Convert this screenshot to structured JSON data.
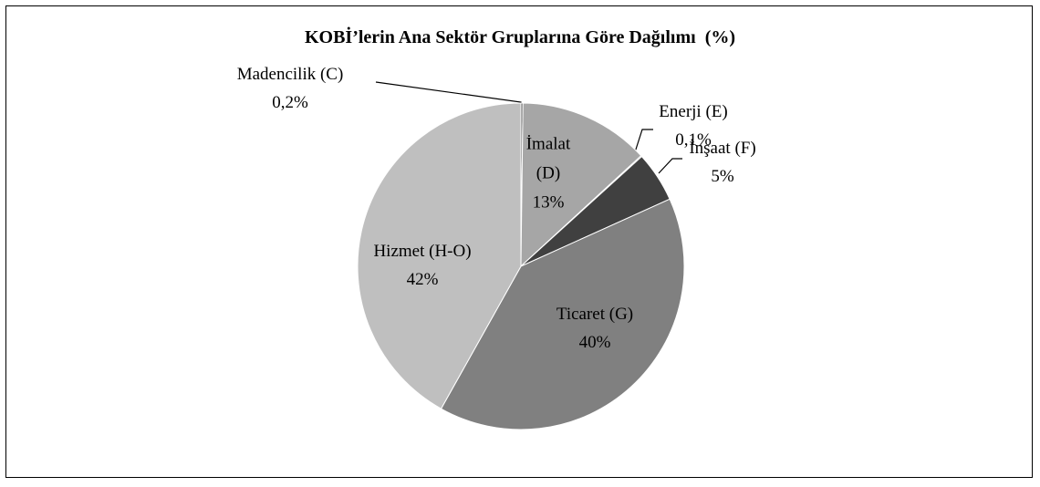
{
  "chart_data": {
    "type": "pie",
    "title": "KOBİ’lerin Ana Sektör Gruplarına Göre Dağılımı  (%)",
    "categories": [
      "Madencilik (C)",
      "İmalat (D)",
      "Enerji (E)",
      "İnşaat (F)",
      "Ticaret (G)",
      "Hizmet (H-O)"
    ],
    "values": [
      0.2,
      13,
      0.1,
      5,
      40,
      42
    ],
    "value_labels": [
      "0,2%",
      "13%",
      "0,1%",
      "5%",
      "40%",
      "42%"
    ],
    "colors": [
      "#595959",
      "#a6a6a6",
      "#262626",
      "#404040",
      "#808080",
      "#bfbfbf"
    ]
  }
}
